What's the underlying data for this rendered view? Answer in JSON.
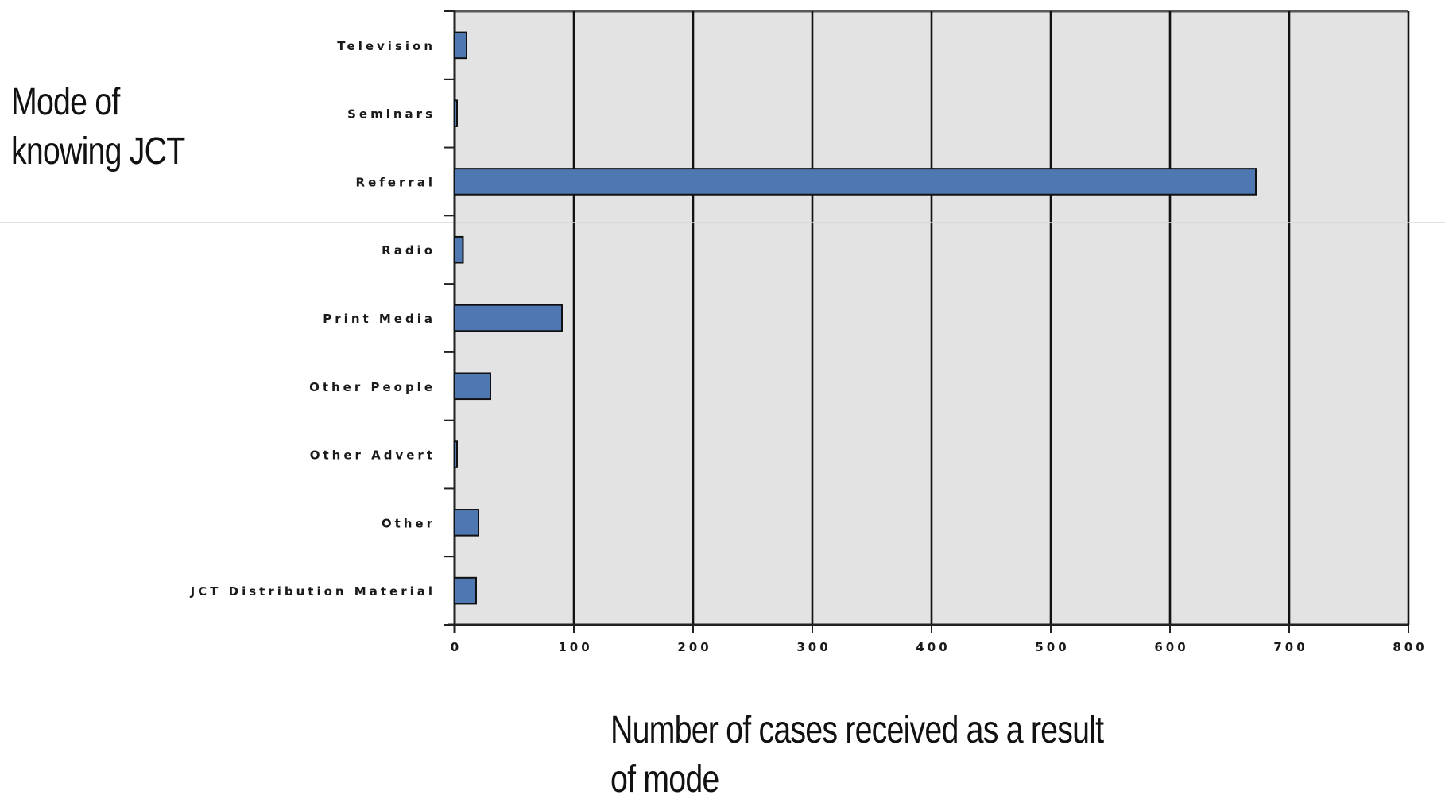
{
  "chart_data": {
    "type": "bar",
    "orientation": "horizontal",
    "title": "",
    "ylabel": "Mode of knowing JCT",
    "ylabel_lines": [
      "Mode of",
      "knowing JCT"
    ],
    "xlabel": "Number of cases received as a result of mode",
    "xlim": [
      0,
      800
    ],
    "xticks": [
      "0",
      "100",
      "200",
      "300",
      "400",
      "500",
      "600",
      "700",
      "800"
    ],
    "grid": true,
    "categories": [
      "Television",
      "Seminars",
      "Referral",
      "Radio",
      "Print Media",
      "Other People",
      "Other Advert",
      "Other",
      "JCT Distribution Material"
    ],
    "values": [
      10,
      2,
      672,
      7,
      90,
      30,
      2,
      20,
      18
    ],
    "colors": {
      "bar": "#4f77b1",
      "bar_edge": "#111111",
      "plot_background": "#e3e3e3",
      "grid": "#111111"
    }
  }
}
